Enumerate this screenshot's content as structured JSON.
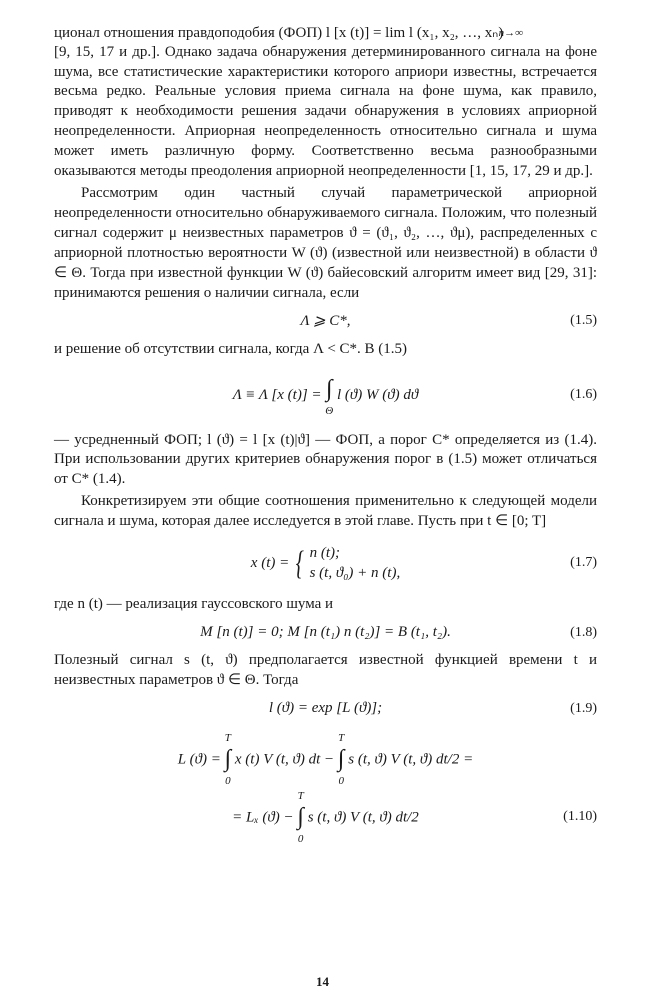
{
  "p1": "ционал отношения правдоподобия (ФОП) l [x (t)] = lim l (x₁, x₂, …, xₙ)",
  "p1a": "n→∞",
  "p2": "[9, 15, 17 и др.]. Однако задача обнаружения детерминированного сигнала на фоне шума, все статистические характеристики которого априори известны, встречается весьма редко. Реальные условия приема сигнала на фоне шума, как правило, приводят к необходимости решения задачи обнаружения в условиях априорной неопределенности. Априорная неопределенность относительно сигнала и шума может иметь различную форму. Соответственно весьма разнообразными оказываются методы преодоления априорной неопределенности [1, 15, 17, 29 и др.].",
  "p3": "Рассмотрим один частный случай параметрической априорной неопределенности относительно обнаруживаемого сигнала. Положим, что полезный сигнал содержит μ неизвестных параметров ϑ = (ϑ₁, ϑ₂, …, ϑμ), распределенных с априорной плотностью вероятности W (ϑ) (известной или неизвестной) в области ϑ ∈ Θ. Тогда при известной функции W (ϑ) байесовский алгоритм имеет вид [29, 31]: принимаются решения о наличии сигнала, если",
  "eq5": "Λ ⩾ C*,",
  "eq5n": "(1.5)",
  "p4": "и решение об отсутствии сигнала, когда Λ < C*. В (1.5)",
  "eq6_a": "Λ ≡ Λ [x (t)] = ",
  "eq6_int_top": " ",
  "eq6_int_bot": "Θ",
  "eq6_b": " l (ϑ) W (ϑ) dϑ",
  "eq6n": "(1.6)",
  "p5": "— усредненный ФОП; l (ϑ) = l [x (t)|ϑ] — ФОП, а порог C* определяется из (1.4). При использовании других критериев обнаружения порог в (1.5) может отличаться от C* (1.4).",
  "p6": "Конкретизируем эти общие соотношения применительно к следующей модели сигнала и шума, которая далее исследуется в этой главе. Пусть при t ∈ [0; T]",
  "eq7_lhs": "x (t) = ",
  "eq7_c1": "n (t);",
  "eq7_c2": "s (t, ϑ₀) + n (t),",
  "eq7n": "(1.7)",
  "p7": "где n (t) — реализация гауссовского шума и",
  "eq8": "M [n (t)] = 0; M [n (t₁) n (t₂)] = B (t₁, t₂).",
  "eq8n": "(1.8)",
  "p8": "Полезный сигнал s (t, ϑ) предполагается известной функцией времени t и неизвестных параметров ϑ ∈ Θ. Тогда",
  "eq9": "l (ϑ) = exp [L (ϑ)];",
  "eq9n": "(1.9)",
  "eq10_a": "L (ϑ) = ",
  "eq10_top": "T",
  "eq10_bot": "0",
  "eq10_b": " x (t) V (t, ϑ) dt − ",
  "eq10_c": " s (t, ϑ) V (t, ϑ) dt/2 =",
  "eq10_d": "= Lₓ (ϑ) − ",
  "eq10_e": " s (t, ϑ) V (t, ϑ) dt/2",
  "eq10n": "(1.10)",
  "pagenum": "14"
}
